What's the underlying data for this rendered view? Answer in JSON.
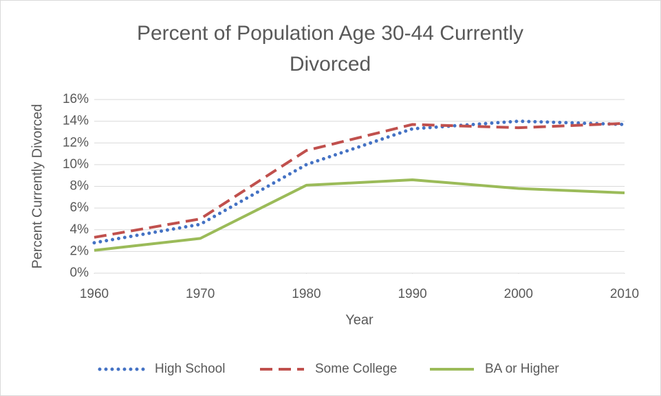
{
  "chart_data": {
    "type": "line",
    "title": "Percent of Population Age 30-44 Currently Divorced",
    "x_label": "Year",
    "y_label": "Percent Currently Divorced",
    "x": [
      1960,
      1970,
      1980,
      1990,
      2000,
      2010
    ],
    "series": [
      {
        "name": "High School",
        "color": "#4472c4",
        "line_style": "dotted",
        "values": [
          2.8,
          4.5,
          10.0,
          13.3,
          14.0,
          13.7
        ]
      },
      {
        "name": "Some College",
        "color": "#c0504d",
        "line_style": "dashed",
        "values": [
          3.3,
          5.0,
          11.3,
          13.7,
          13.4,
          13.8
        ]
      },
      {
        "name": "BA or Higher",
        "color": "#9bbb59",
        "line_style": "solid",
        "values": [
          2.1,
          3.2,
          8.1,
          8.6,
          7.8,
          7.4
        ]
      }
    ],
    "xlim": [
      1960,
      2010
    ],
    "xticks": [
      1960,
      1970,
      1980,
      1990,
      2000,
      2010
    ],
    "ylim": [
      0,
      16
    ],
    "yticks": [
      {
        "value": 0,
        "label": "0%"
      },
      {
        "value": 2,
        "label": "2%"
      },
      {
        "value": 4,
        "label": "4%"
      },
      {
        "value": 6,
        "label": "6%"
      },
      {
        "value": 8,
        "label": "8%"
      },
      {
        "value": 10,
        "label": "10%"
      },
      {
        "value": 12,
        "label": "12%"
      },
      {
        "value": 14,
        "label": "14%"
      },
      {
        "value": 16,
        "label": "16%"
      }
    ],
    "grid": true,
    "legend": "bottom"
  }
}
